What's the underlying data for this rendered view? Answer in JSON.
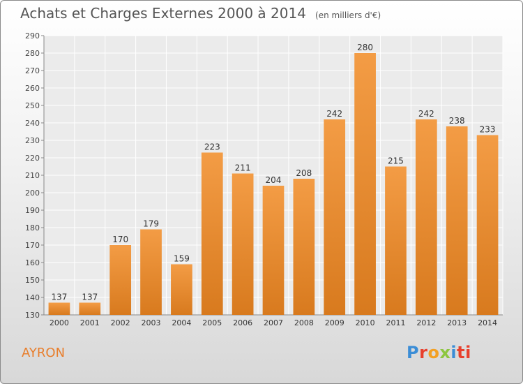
{
  "title": "Achats et Charges Externes 2000 à 2014",
  "subtitle": "(en milliers d'€)",
  "location": "AYRON",
  "logo_text": "Proxiti",
  "colors": {
    "bar": "#f39c45",
    "bar_dark": "#d87a1e",
    "title": "#555555",
    "location": "#e87e2c"
  },
  "chart_data": {
    "type": "bar",
    "categories": [
      "2000",
      "2001",
      "2002",
      "2003",
      "2004",
      "2005",
      "2006",
      "2007",
      "2008",
      "2009",
      "2010",
      "2011",
      "2012",
      "2013",
      "2014"
    ],
    "values": [
      137,
      137,
      170,
      179,
      159,
      223,
      211,
      204,
      208,
      242,
      280,
      215,
      242,
      238,
      233
    ],
    "ylim": [
      130,
      290
    ],
    "yticks": [
      130,
      140,
      150,
      160,
      170,
      180,
      190,
      200,
      210,
      220,
      230,
      240,
      250,
      260,
      270,
      280,
      290
    ],
    "xlabel": "",
    "ylabel": "",
    "grid": true,
    "data_labels": true
  }
}
